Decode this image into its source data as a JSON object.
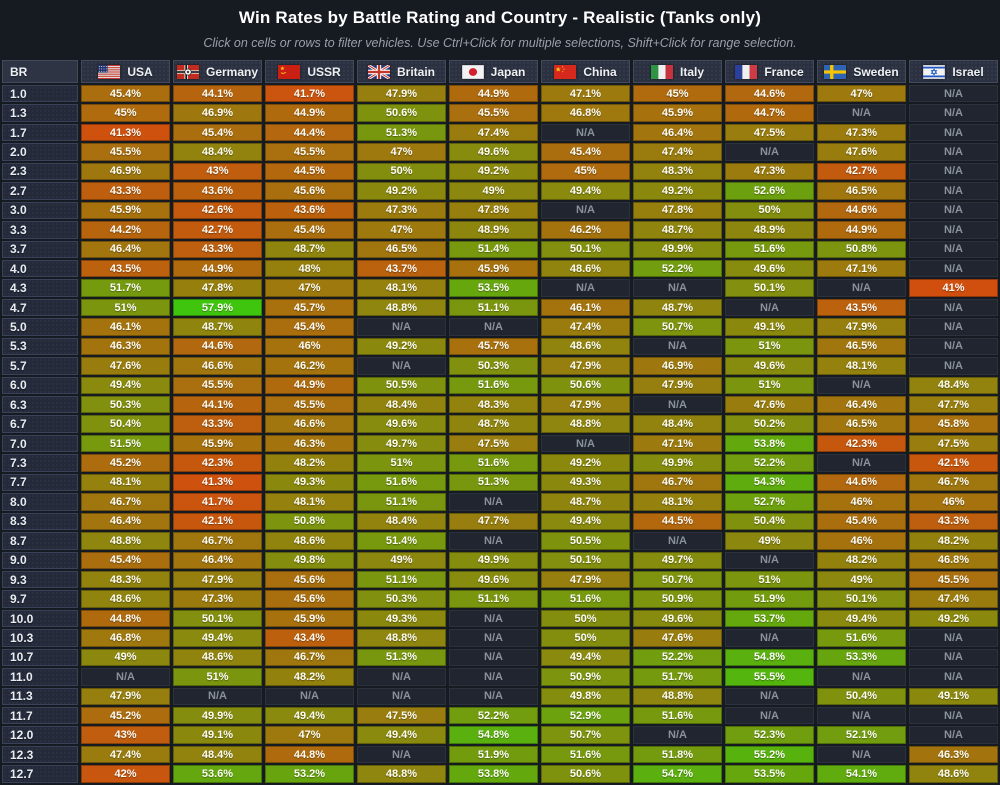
{
  "header": {
    "title": "Win Rates by Battle Rating and Country - Realistic (Tanks only)",
    "subtitle": "Click on cells or rows to filter vehicles. Use Ctrl+Click for multiple selections, Shift+Click for range selection."
  },
  "table": {
    "corner_label": "BR",
    "na_label": "N/A",
    "columns": [
      {
        "label": "USA",
        "flag": "usa"
      },
      {
        "label": "Germany",
        "flag": "germany"
      },
      {
        "label": "USSR",
        "flag": "ussr"
      },
      {
        "label": "Britain",
        "flag": "britain"
      },
      {
        "label": "Japan",
        "flag": "japan"
      },
      {
        "label": "China",
        "flag": "china"
      },
      {
        "label": "Italy",
        "flag": "italy"
      },
      {
        "label": "France",
        "flag": "france"
      },
      {
        "label": "Sweden",
        "flag": "sweden"
      },
      {
        "label": "Israel",
        "flag": "israel"
      }
    ]
  },
  "chart_data": {
    "type": "heatmap",
    "title": "Win Rates by Battle Rating and Country - Realistic (Tanks only)",
    "value_unit": "%",
    "na_label": "N/A",
    "x_categories": [
      "USA",
      "Germany",
      "USSR",
      "Britain",
      "Japan",
      "China",
      "Italy",
      "France",
      "Sweden",
      "Israel"
    ],
    "y_categories": [
      "1.0",
      "1.3",
      "1.7",
      "2.0",
      "2.3",
      "2.7",
      "3.0",
      "3.3",
      "3.7",
      "4.0",
      "4.3",
      "4.7",
      "5.0",
      "5.3",
      "5.7",
      "6.0",
      "6.3",
      "6.7",
      "7.0",
      "7.3",
      "7.7",
      "8.0",
      "8.3",
      "8.7",
      "9.0",
      "9.3",
      "9.7",
      "10.0",
      "10.3",
      "10.7",
      "11.0",
      "11.3",
      "11.7",
      "12.0",
      "12.3",
      "12.7"
    ],
    "values": [
      [
        45.4,
        44.1,
        41.7,
        47.9,
        44.9,
        47.1,
        45,
        44.6,
        47,
        null
      ],
      [
        45,
        46.9,
        44.9,
        50.6,
        45.5,
        46.8,
        45.9,
        44.7,
        null,
        null
      ],
      [
        41.3,
        45.4,
        44.4,
        51.3,
        47.4,
        null,
        46.4,
        47.5,
        47.3,
        null
      ],
      [
        45.5,
        48.4,
        45.5,
        47,
        49.6,
        45.4,
        47.4,
        null,
        47.6,
        null
      ],
      [
        46.9,
        43,
        44.5,
        50,
        49.2,
        45,
        48.3,
        47.3,
        42.7,
        null
      ],
      [
        43.3,
        43.6,
        45.6,
        49.2,
        49,
        49.4,
        49.2,
        52.6,
        46.5,
        null
      ],
      [
        45.9,
        42.6,
        43.6,
        47.3,
        47.8,
        null,
        47.8,
        50,
        44.6,
        null
      ],
      [
        44.2,
        42.7,
        45.4,
        47,
        48.9,
        46.2,
        48.7,
        48.9,
        44.9,
        null
      ],
      [
        46.4,
        43.3,
        48.7,
        46.5,
        51.4,
        50.1,
        49.9,
        51.6,
        50.8,
        null
      ],
      [
        43.5,
        44.9,
        48,
        43.7,
        45.9,
        48.6,
        52.2,
        49.6,
        47.1,
        null
      ],
      [
        51.7,
        47.8,
        47,
        48.1,
        53.5,
        null,
        null,
        50.1,
        null,
        41
      ],
      [
        51,
        57.9,
        45.7,
        48.8,
        51.1,
        46.1,
        48.7,
        null,
        43.5,
        null
      ],
      [
        46.1,
        48.7,
        45.4,
        null,
        null,
        47.4,
        50.7,
        49.1,
        47.9,
        null
      ],
      [
        46.3,
        44.6,
        46,
        49.2,
        45.7,
        48.6,
        null,
        51,
        46.5,
        null
      ],
      [
        47.6,
        46.6,
        46.2,
        null,
        50.3,
        47.9,
        46.9,
        49.6,
        48.1,
        null
      ],
      [
        49.4,
        45.5,
        44.9,
        50.5,
        51.6,
        50.6,
        47.9,
        51,
        null,
        48.4
      ],
      [
        50.3,
        44.1,
        45.5,
        48.4,
        48.3,
        47.9,
        null,
        47.6,
        46.4,
        47.7
      ],
      [
        50.4,
        43.3,
        46.6,
        49.6,
        48.7,
        48.8,
        48.4,
        50.2,
        46.5,
        45.8
      ],
      [
        51.5,
        45.9,
        46.3,
        49.7,
        47.5,
        null,
        47.1,
        53.8,
        42.3,
        47.5
      ],
      [
        45.2,
        42.3,
        48.2,
        51,
        51.6,
        49.2,
        49.9,
        52.2,
        null,
        42.1
      ],
      [
        48.1,
        41.3,
        49.3,
        51.6,
        51.3,
        49.3,
        46.7,
        54.3,
        44.6,
        46.7
      ],
      [
        46.7,
        41.7,
        48.1,
        51.1,
        null,
        48.7,
        48.1,
        52.7,
        46,
        46
      ],
      [
        46.4,
        42.1,
        50.8,
        48.4,
        47.7,
        49.4,
        44.5,
        50.4,
        45.4,
        43.3
      ],
      [
        48.8,
        46.7,
        48.6,
        51.4,
        null,
        50.5,
        null,
        49,
        46,
        48.2
      ],
      [
        45.4,
        46.4,
        49.8,
        49,
        49.9,
        50.1,
        49.7,
        null,
        48.2,
        46.8
      ],
      [
        48.3,
        47.9,
        45.6,
        51.1,
        49.6,
        47.9,
        50.7,
        51,
        49,
        45.5
      ],
      [
        48.6,
        47.3,
        45.6,
        50.3,
        51.1,
        51.6,
        50.9,
        51.9,
        50.1,
        47.4
      ],
      [
        44.8,
        50.1,
        45.9,
        49.3,
        null,
        50,
        49.6,
        53.7,
        49.4,
        49.2
      ],
      [
        46.8,
        49.4,
        43.4,
        48.8,
        null,
        50,
        47.6,
        null,
        51.6,
        null
      ],
      [
        49,
        48.6,
        46.7,
        51.3,
        null,
        49.4,
        52.2,
        54.8,
        53.3,
        null
      ],
      [
        null,
        51,
        48.2,
        null,
        null,
        50.9,
        51.7,
        55.5,
        null,
        null
      ],
      [
        47.9,
        null,
        null,
        null,
        null,
        49.8,
        48.8,
        null,
        50.4,
        49.1
      ],
      [
        45.2,
        49.9,
        49.4,
        47.5,
        52.2,
        52.9,
        51.6,
        null,
        null,
        null
      ],
      [
        43,
        49.1,
        47,
        49.4,
        54.8,
        50.7,
        null,
        52.3,
        52.1,
        null
      ],
      [
        47.4,
        48.4,
        44.8,
        null,
        51.9,
        51.6,
        51.8,
        55.2,
        null,
        46.3
      ],
      [
        42,
        53.6,
        53.2,
        48.8,
        53.8,
        50.6,
        54.7,
        53.5,
        54.1,
        48.6
      ]
    ],
    "color_scale": {
      "min_value": 41,
      "max_value": 58,
      "min_color": "#d14f0e",
      "max_color": "#3fc60e",
      "na_color": "#20252f"
    },
    "legend_position": "none",
    "grid": false
  },
  "colors": {
    "background": "#161a21",
    "header_cell_bg": "#2b3140",
    "br_cell_bg": "#242a3a",
    "cell_text": "#fdfdf8",
    "na_text": "#8b919c",
    "title_text": "#ffffff",
    "subtitle_text": "#9aa0a8"
  }
}
